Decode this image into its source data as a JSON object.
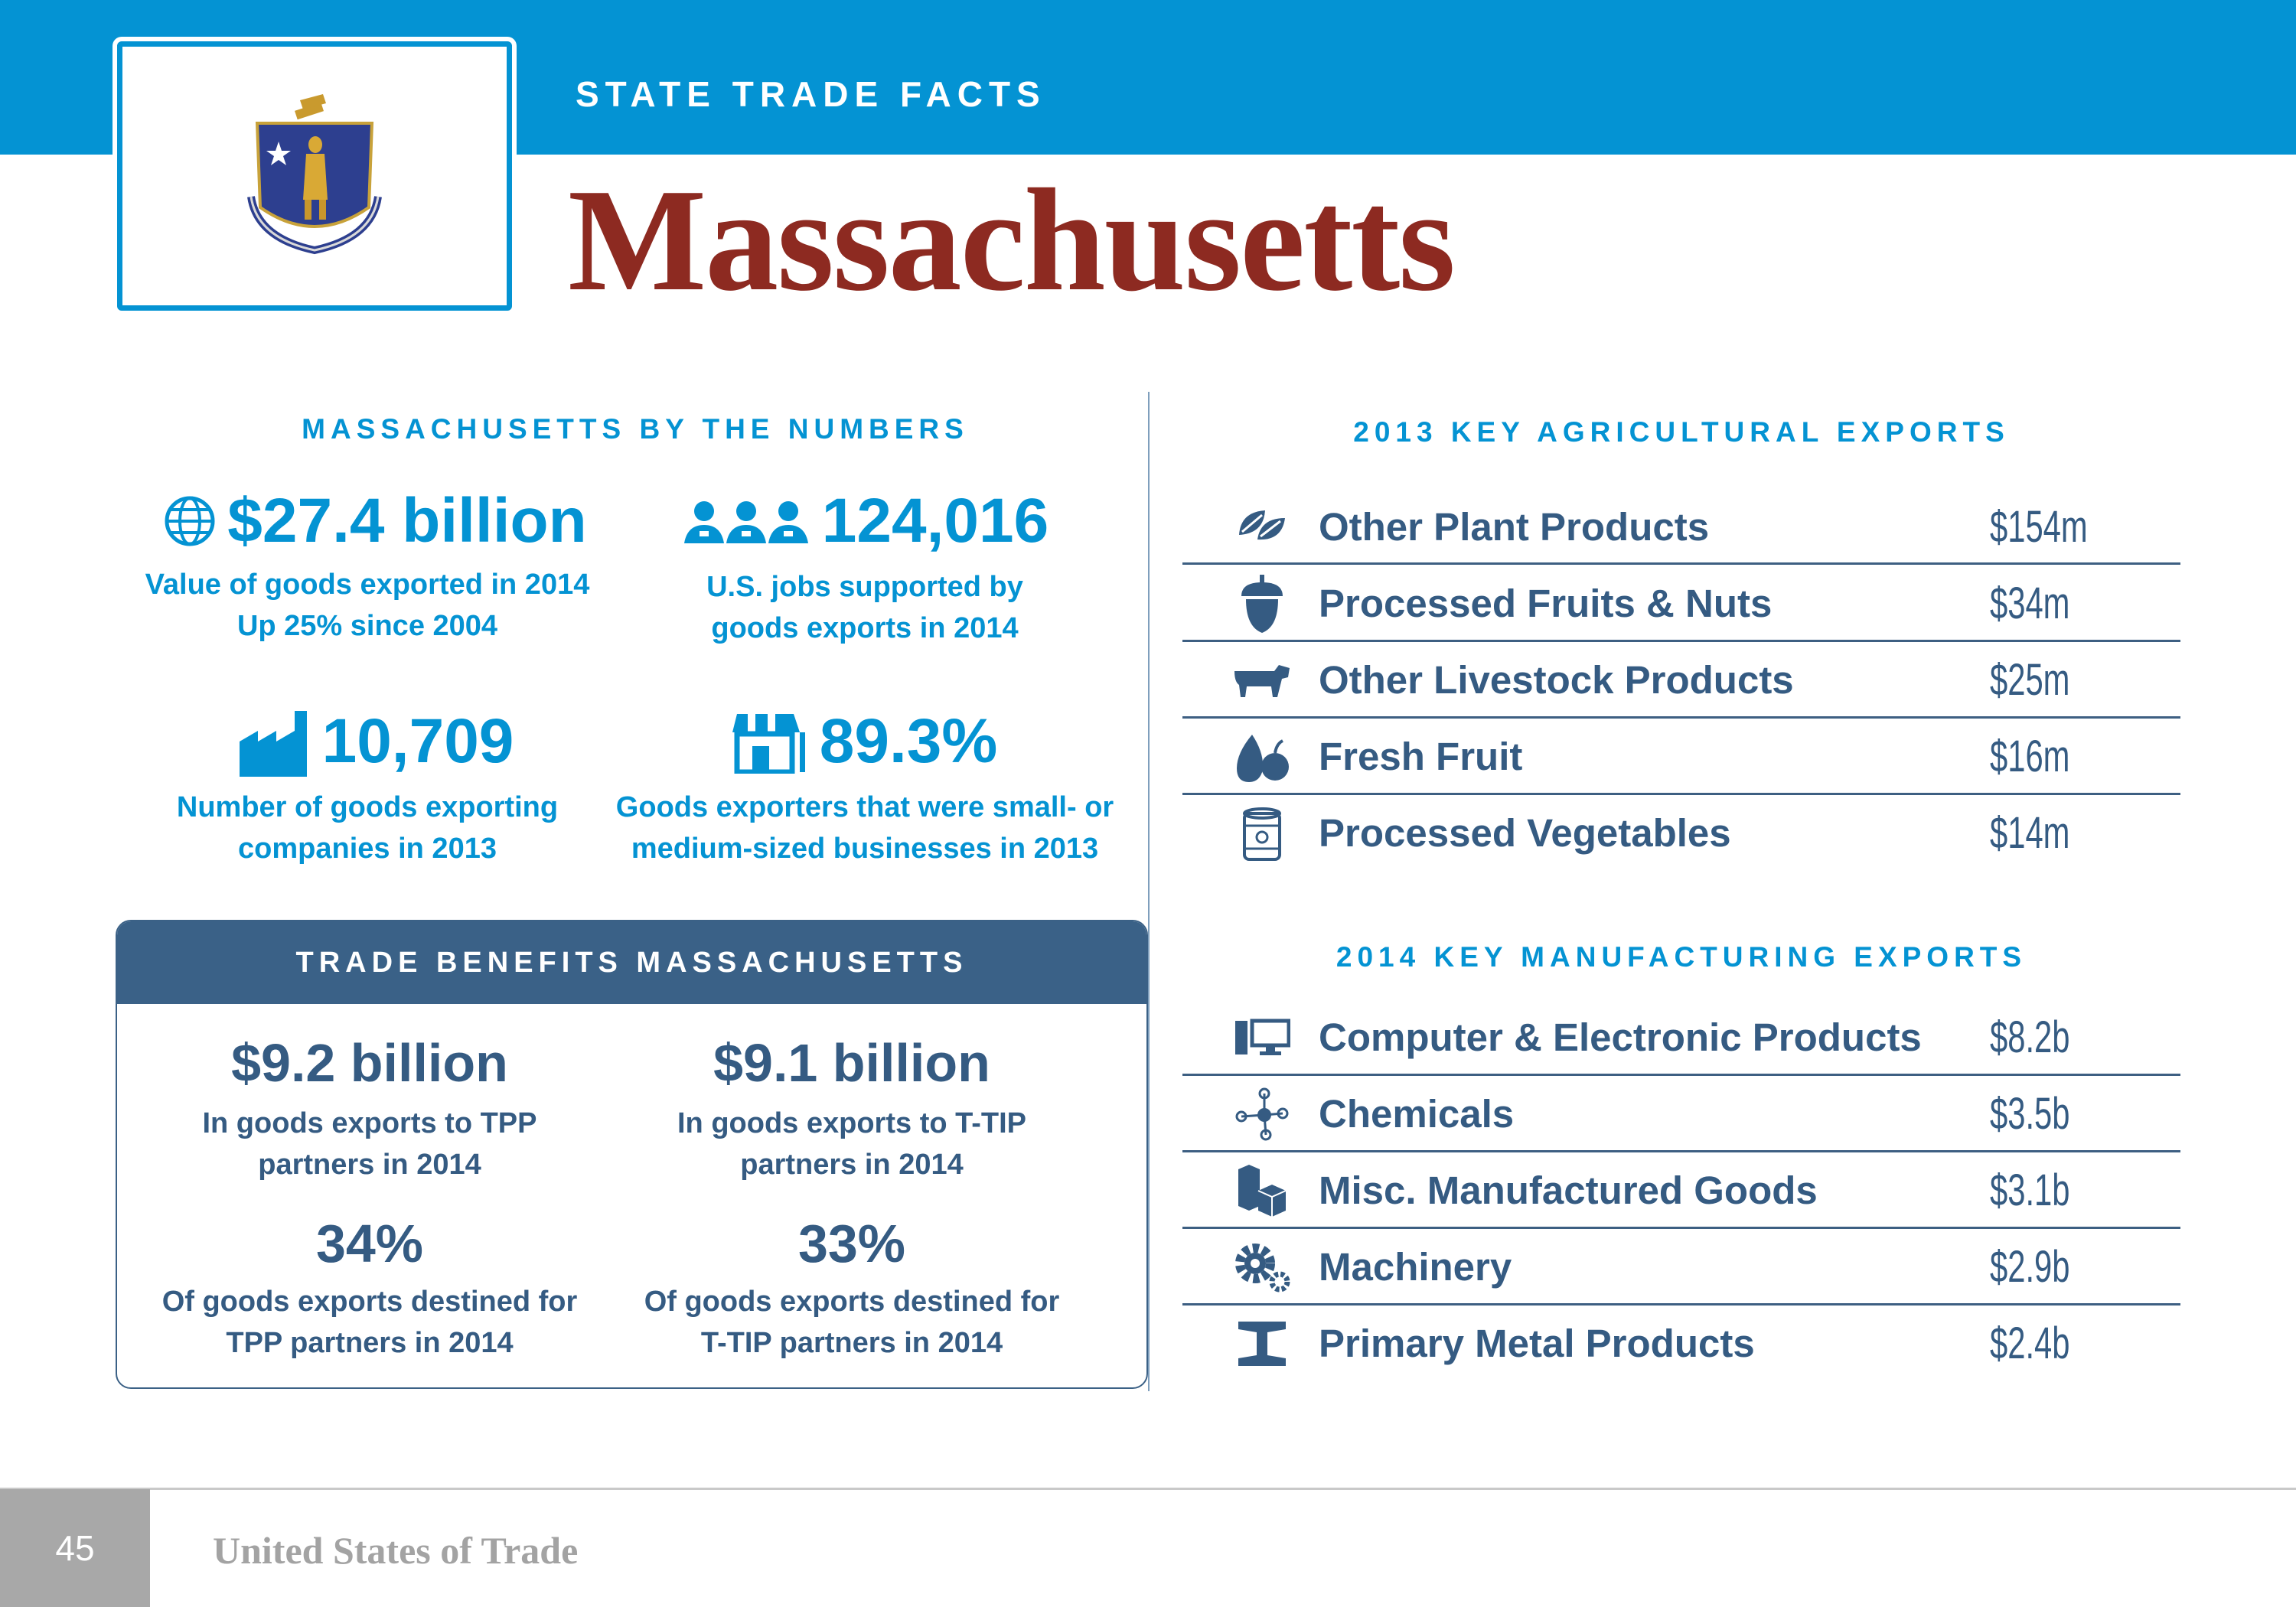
{
  "header": {
    "kicker": "STATE TRADE FACTS",
    "state_name": "Massachusetts"
  },
  "colors": {
    "brand_blue": "#0493d3",
    "navy": "#355b82",
    "title_red": "#8d2a21",
    "footer_gray": "#a8a8a8"
  },
  "by_numbers": {
    "heading": "MASSACHUSETTS BY THE NUMBERS",
    "stats": [
      {
        "icon": "globe-icon",
        "value": "$27.4 billion",
        "desc1": "Value of goods exported in 2014",
        "desc2": "Up 25% since 2004"
      },
      {
        "icon": "workers-icon",
        "value": "124,016",
        "desc1": "U.S. jobs supported by",
        "desc2": "goods exports in 2014"
      },
      {
        "icon": "factory-icon",
        "value": "10,709",
        "desc1": "Number of goods exporting",
        "desc2": "companies in 2013"
      },
      {
        "icon": "storefront-icon",
        "value": "89.3%",
        "desc1": "Goods exporters that were small- or",
        "desc2": "medium-sized businesses in 2013"
      }
    ]
  },
  "benefits": {
    "heading": "TRADE BENEFITS MASSACHUSETTS",
    "items": [
      {
        "value": "$9.2 billion",
        "desc1": "In goods exports to TPP",
        "desc2": "partners in 2014"
      },
      {
        "value": "$9.1 billion",
        "desc1": "In goods exports to T-TIP",
        "desc2": "partners in 2014"
      },
      {
        "value": "34%",
        "desc1": "Of goods exports destined for",
        "desc2": "TPP partners in 2014"
      },
      {
        "value": "33%",
        "desc1": "Of goods exports destined for",
        "desc2": "T-TIP partners in 2014"
      }
    ]
  },
  "agricultural": {
    "heading": "2013 KEY AGRICULTURAL EXPORTS",
    "rows": [
      {
        "icon": "leaves-icon",
        "label": "Other Plant Products",
        "value": "$154m"
      },
      {
        "icon": "acorn-icon",
        "label": "Processed Fruits & Nuts",
        "value": "$34m"
      },
      {
        "icon": "cow-icon",
        "label": "Other Livestock Products",
        "value": "$25m"
      },
      {
        "icon": "fruit-icon",
        "label": "Fresh Fruit",
        "value": "$16m"
      },
      {
        "icon": "can-icon",
        "label": "Processed Vegetables",
        "value": "$14m"
      }
    ]
  },
  "manufacturing": {
    "heading": "2014 KEY MANUFACTURING EXPORTS",
    "rows": [
      {
        "icon": "computer-icon",
        "label": "Computer & Electronic Products",
        "value": "$8.2b"
      },
      {
        "icon": "molecule-icon",
        "label": "Chemicals",
        "value": "$3.5b"
      },
      {
        "icon": "boxes-icon",
        "label": "Misc. Manufactured Goods",
        "value": "$3.1b"
      },
      {
        "icon": "gears-icon",
        "label": "Machinery",
        "value": "$2.9b"
      },
      {
        "icon": "ibeam-icon",
        "label": "Primary Metal Products",
        "value": "$2.4b"
      }
    ]
  },
  "footer": {
    "page_number": "45",
    "title": "United States of Trade"
  }
}
